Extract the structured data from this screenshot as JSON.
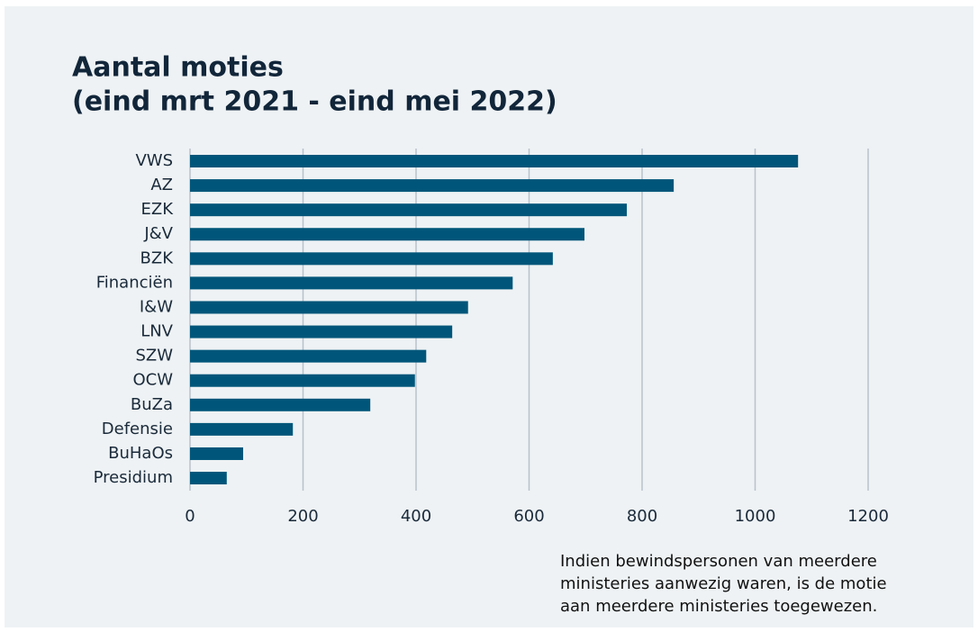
{
  "chart_data": {
    "type": "hbar",
    "title": "Aantal moties",
    "subtitle": "(eind mrt 2021 - eind mei 2022)",
    "categories": [
      "VWS",
      "AZ",
      "EZK",
      "J&V",
      "BZK",
      "Financiën",
      "I&W",
      "LNV",
      "SZW",
      "OCW",
      "BuZa",
      "Defensie",
      "BuHaOs",
      "Presidium"
    ],
    "values": [
      1076,
      856,
      773,
      698,
      642,
      571,
      492,
      464,
      418,
      398,
      319,
      182,
      94,
      65
    ],
    "color": "#00567a",
    "xlim": [
      0,
      1200
    ],
    "xticks": [
      0,
      200,
      400,
      600,
      800,
      1000,
      1200
    ],
    "grid": true,
    "annotation": [
      "Indien bewindspersonen van meerdere",
      "ministeries aanwezig waren, is de motie",
      "aan meerdere ministeries toegewezen."
    ]
  }
}
